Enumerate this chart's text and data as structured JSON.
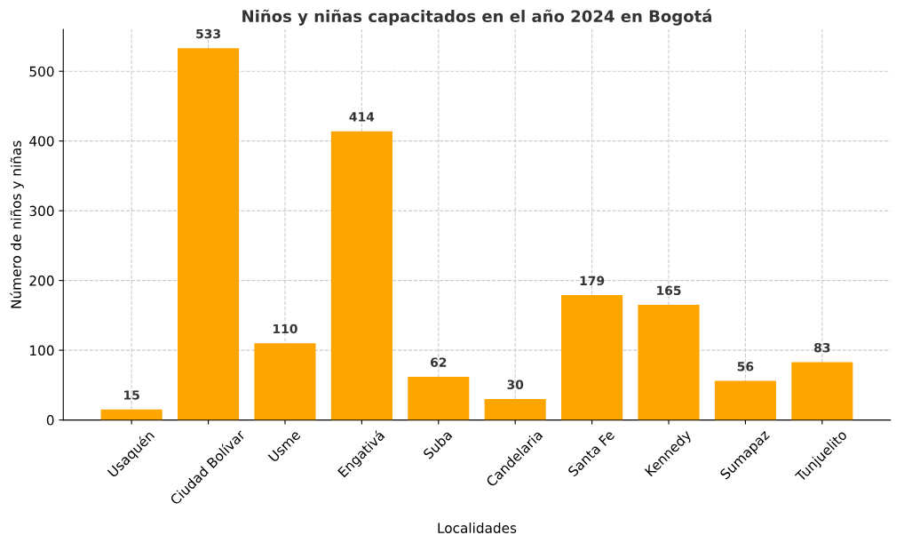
{
  "chart_data": {
    "type": "bar",
    "title": "Niños y niñas capacitados en el año 2024 en Bogotá",
    "xlabel": "Localidades",
    "ylabel": "Número de niños y niñas",
    "categories": [
      "Usaquén",
      "Ciudad Bolívar",
      "Usme",
      "Engativá",
      "Suba",
      "Candelaria",
      "Santa Fe",
      "Kennedy",
      "Sumapaz",
      "Tunjuelito"
    ],
    "values": [
      15,
      533,
      110,
      414,
      62,
      30,
      179,
      165,
      56,
      83
    ],
    "color": "#ffa500",
    "ylim": [
      0,
      560
    ],
    "yticks": [
      0,
      100,
      200,
      300,
      400,
      500
    ],
    "grid": true,
    "data_labels": true
  }
}
